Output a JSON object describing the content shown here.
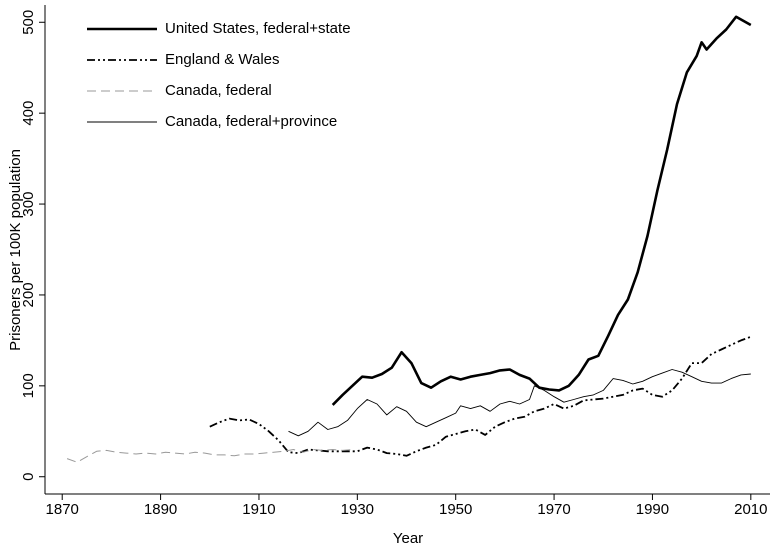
{
  "chart_data": {
    "type": "line",
    "xlabel": "Year",
    "ylabel": "Prisoners per 100K population",
    "xlim": [
      1866.5,
      2013.9
    ],
    "ylim": [
      -19,
      519
    ],
    "xticks": [
      1870,
      1890,
      1910,
      1930,
      1950,
      1970,
      1990,
      2010
    ],
    "yticks": [
      0,
      100,
      200,
      300,
      400,
      500
    ],
    "legend": "top-left",
    "series": [
      {
        "name": "United States, federal+state",
        "color": "#000000",
        "width": 2.6,
        "dash": "none",
        "x": [
          1925,
          1927,
          1929,
          1931,
          1933,
          1935,
          1937,
          1939,
          1941,
          1943,
          1945,
          1947,
          1949,
          1951,
          1953,
          1955,
          1957,
          1959,
          1961,
          1963,
          1965,
          1967,
          1969,
          1971,
          1973,
          1975,
          1977,
          1979,
          1981,
          1983,
          1985,
          1987,
          1989,
          1991,
          1993,
          1995,
          1997,
          1999,
          2000,
          2001,
          2003,
          2005,
          2007,
          2009,
          2010
        ],
        "values": [
          79,
          90,
          100,
          110,
          109,
          113,
          120,
          137,
          125,
          103,
          98,
          105,
          110,
          107,
          110,
          112,
          114,
          117,
          118,
          112,
          108,
          98,
          96,
          95,
          100,
          112,
          129,
          133,
          155,
          178,
          195,
          225,
          265,
          315,
          360,
          410,
          445,
          463,
          478,
          470,
          482,
          492,
          506,
          500,
          497
        ]
      },
      {
        "name": "England & Wales",
        "color": "#000000",
        "width": 1.8,
        "dash": "8 3 2 3 2 3",
        "x": [
          1900,
          1902,
          1904,
          1906,
          1908,
          1910,
          1912,
          1914,
          1916,
          1918,
          1920,
          1922,
          1924,
          1926,
          1928,
          1930,
          1932,
          1934,
          1936,
          1938,
          1940,
          1942,
          1944,
          1946,
          1948,
          1950,
          1952,
          1954,
          1956,
          1958,
          1960,
          1962,
          1964,
          1966,
          1968,
          1970,
          1972,
          1974,
          1976,
          1978,
          1980,
          1982,
          1984,
          1986,
          1988,
          1990,
          1992,
          1994,
          1996,
          1998,
          2000,
          2002,
          2004,
          2006,
          2008,
          2010
        ],
        "values": [
          55,
          60,
          64,
          62,
          63,
          58,
          50,
          40,
          27,
          26,
          30,
          29,
          28,
          28,
          28,
          28,
          32,
          30,
          26,
          25,
          23,
          28,
          32,
          35,
          44,
          47,
          50,
          52,
          46,
          55,
          60,
          64,
          66,
          72,
          75,
          80,
          75,
          78,
          84,
          85,
          86,
          88,
          90,
          95,
          97,
          90,
          88,
          95,
          108,
          125,
          125,
          135,
          140,
          145,
          150,
          154
        ]
      },
      {
        "name": "Canada, federal",
        "color": "#999999",
        "width": 1,
        "dash": "9 5",
        "x": [
          1871,
          1873,
          1875,
          1877,
          1879,
          1881,
          1883,
          1885,
          1887,
          1889,
          1891,
          1893,
          1895,
          1897,
          1899,
          1901,
          1903,
          1905,
          1907,
          1909,
          1911,
          1913,
          1915,
          1917,
          1919,
          1921,
          1923,
          1925,
          1927,
          1929
        ],
        "values": [
          20,
          16,
          22,
          28,
          29,
          27,
          26,
          25,
          26,
          25,
          27,
          26,
          25,
          27,
          26,
          24,
          24,
          23,
          25,
          25,
          26,
          27,
          28,
          30,
          27,
          30,
          29,
          30,
          29,
          30
        ]
      },
      {
        "name": "Canada, federal+province",
        "color": "#000000",
        "width": 0.9,
        "dash": "none",
        "x": [
          1916,
          1918,
          1920,
          1922,
          1924,
          1926,
          1928,
          1930,
          1932,
          1934,
          1936,
          1938,
          1940,
          1942,
          1944,
          1946,
          1948,
          1950,
          1951,
          1953,
          1955,
          1957,
          1959,
          1961,
          1963,
          1965,
          1966,
          1968,
          1970,
          1972,
          1974,
          1976,
          1978,
          1980,
          1982,
          1984,
          1986,
          1988,
          1990,
          1992,
          1994,
          1996,
          1998,
          2000,
          2002,
          2004,
          2006,
          2008,
          2010
        ],
        "values": [
          50,
          45,
          50,
          60,
          52,
          55,
          62,
          75,
          85,
          80,
          68,
          77,
          72,
          60,
          55,
          60,
          65,
          70,
          78,
          75,
          78,
          72,
          80,
          83,
          80,
          85,
          100,
          95,
          88,
          82,
          85,
          88,
          90,
          95,
          108,
          106,
          102,
          105,
          110,
          114,
          118,
          115,
          110,
          105,
          103,
          103,
          108,
          112,
          113
        ]
      }
    ]
  }
}
